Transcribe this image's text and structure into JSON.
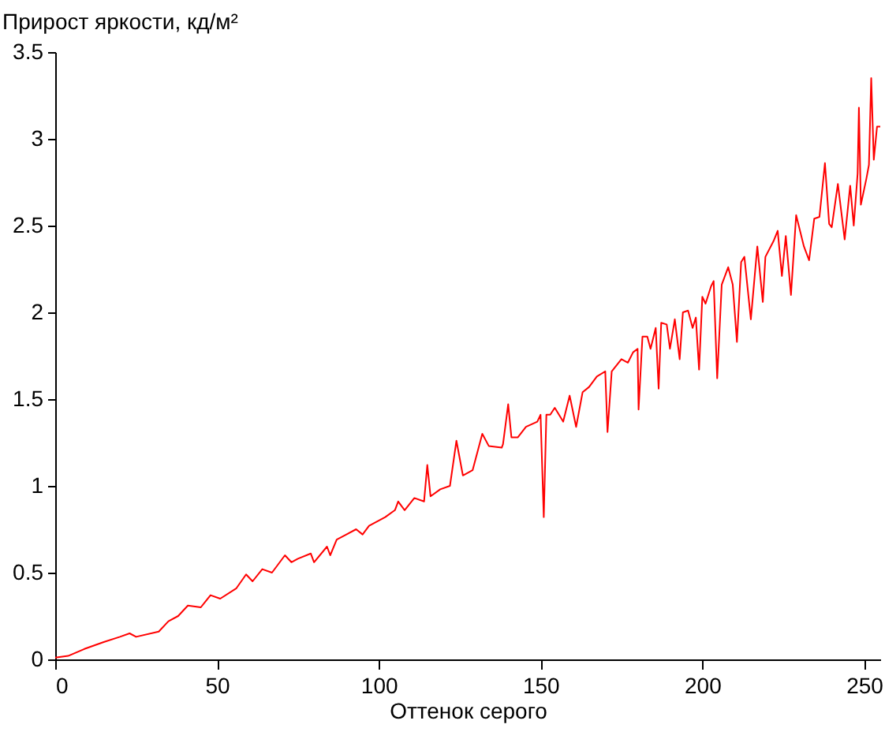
{
  "chart_data": {
    "type": "line",
    "ylabel": "Прирост яркости, кд/м²",
    "xlabel": "Оттенок серого",
    "xlim": [
      0,
      255
    ],
    "ylim": [
      0,
      3.5
    ],
    "xticks": [
      0,
      50,
      100,
      150,
      200,
      250
    ],
    "yticks": [
      0,
      0.5,
      1,
      1.5,
      2,
      2.5,
      3,
      3.5
    ],
    "grid": false,
    "marker": "none",
    "line_style": "solid",
    "series": [
      {
        "color": "#ff0000",
        "x": [
          0,
          4,
          9,
          15,
          20,
          23,
          25,
          32,
          35,
          38,
          41,
          45,
          48,
          51,
          56,
          59,
          61,
          64,
          67,
          71,
          73,
          75,
          79,
          80,
          84,
          85,
          87,
          90,
          93,
          95,
          97,
          102,
          105,
          106,
          108,
          111,
          114,
          115,
          116,
          119,
          122,
          124,
          126,
          129,
          132,
          134,
          138,
          138.4,
          140,
          141,
          143,
          145.5,
          149,
          150,
          151,
          151.8,
          153,
          154.4,
          157,
          159,
          161,
          163,
          165,
          167.4,
          170,
          170.7,
          172,
          175,
          177,
          178.6,
          180,
          180.3,
          181.5,
          183,
          184,
          185.6,
          186.5,
          187.3,
          189,
          190,
          191.5,
          193,
          194,
          195.6,
          197,
          198,
          199,
          200,
          201,
          202.7,
          203.5,
          204.6,
          206,
          208,
          209.4,
          210.7,
          212,
          213,
          215,
          217,
          218.7,
          219.5,
          222,
          223.3,
          224.6,
          225.8,
          227.4,
          229,
          231.4,
          233,
          234.6,
          236.2,
          237.9,
          239.2,
          240,
          241.9,
          244,
          245.7,
          246.8,
          248,
          248.4,
          249,
          250.7,
          251.5,
          252.2,
          253,
          254,
          255
        ],
        "values": [
          0.01,
          0.02,
          0.06,
          0.1,
          0.13,
          0.15,
          0.13,
          0.16,
          0.22,
          0.25,
          0.31,
          0.3,
          0.37,
          0.35,
          0.41,
          0.49,
          0.45,
          0.52,
          0.5,
          0.6,
          0.56,
          0.58,
          0.61,
          0.56,
          0.65,
          0.6,
          0.69,
          0.72,
          0.75,
          0.72,
          0.77,
          0.82,
          0.86,
          0.91,
          0.86,
          0.93,
          0.91,
          1.12,
          0.94,
          0.98,
          1.0,
          1.26,
          1.06,
          1.09,
          1.3,
          1.23,
          1.22,
          1.24,
          1.47,
          1.28,
          1.28,
          1.34,
          1.37,
          1.41,
          0.82,
          1.41,
          1.41,
          1.45,
          1.37,
          1.52,
          1.34,
          1.54,
          1.57,
          1.63,
          1.66,
          1.31,
          1.66,
          1.73,
          1.71,
          1.77,
          1.79,
          1.44,
          1.86,
          1.86,
          1.79,
          1.91,
          1.56,
          1.94,
          1.93,
          1.79,
          1.96,
          1.73,
          2.0,
          2.01,
          1.91,
          1.97,
          1.67,
          2.09,
          2.05,
          2.15,
          2.18,
          1.62,
          2.16,
          2.26,
          2.16,
          1.83,
          2.29,
          2.32,
          1.96,
          2.38,
          2.06,
          2.32,
          2.41,
          2.47,
          2.21,
          2.44,
          2.1,
          2.56,
          2.38,
          2.3,
          2.54,
          2.55,
          2.86,
          2.51,
          2.49,
          2.74,
          2.42,
          2.73,
          2.5,
          2.8,
          3.18,
          2.62,
          2.77,
          2.85,
          3.35,
          2.88,
          3.07,
          3.07
        ]
      }
    ]
  }
}
